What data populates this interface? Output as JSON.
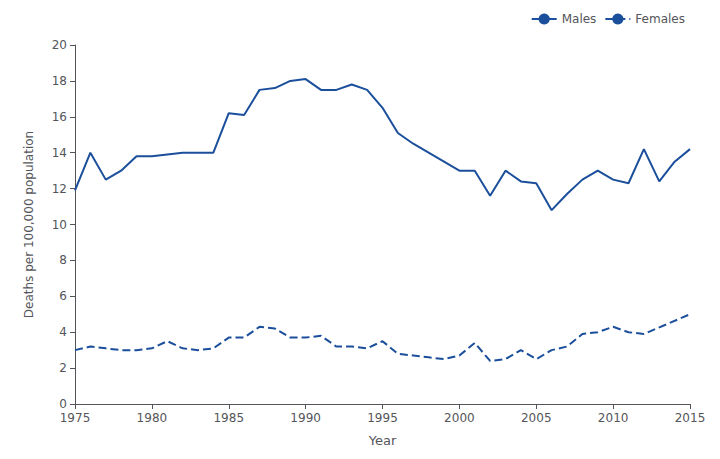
{
  "chart_data": {
    "type": "line",
    "xlabel": "Year",
    "ylabel": "Deaths per 100,000 population",
    "series": [
      {
        "name": "Males",
        "color": "#1B4F9B",
        "line_style": "solid",
        "x": [
          1975,
          1976,
          1977,
          1978,
          1979,
          1980,
          1981,
          1982,
          1983,
          1984,
          1985,
          1986,
          1987,
          1988,
          1989,
          1990,
          1991,
          1992,
          1993,
          1994,
          1995,
          1996,
          1997,
          1998,
          1999,
          2000,
          2001,
          2002,
          2003,
          2004,
          2005,
          2006,
          2007,
          2008,
          2009,
          2010,
          2011,
          2012,
          2013,
          2014,
          2015
        ],
        "values": [
          11.9,
          14.0,
          12.5,
          13.0,
          13.8,
          13.8,
          13.9,
          14.0,
          14.0,
          14.0,
          16.2,
          16.1,
          17.5,
          17.6,
          18.0,
          18.1,
          17.5,
          17.5,
          17.8,
          17.5,
          16.5,
          15.1,
          14.5,
          14.0,
          13.5,
          13.0,
          13.0,
          11.6,
          13.0,
          12.4,
          12.3,
          10.8,
          11.7,
          12.5,
          13.0,
          12.5,
          12.3,
          14.2,
          12.4,
          13.5,
          14.2
        ]
      },
      {
        "name": "Females",
        "color": "#1B4F9B",
        "line_style": "dashed",
        "x": [
          1975,
          1976,
          1977,
          1978,
          1979,
          1980,
          1981,
          1982,
          1983,
          1984,
          1985,
          1986,
          1987,
          1988,
          1989,
          1990,
          1991,
          1992,
          1993,
          1994,
          1995,
          1996,
          1997,
          1998,
          1999,
          2000,
          2001,
          2002,
          2003,
          2004,
          2005,
          2006,
          2007,
          2008,
          2009,
          2010,
          2011,
          2012,
          2015
        ],
        "values": [
          3.0,
          3.2,
          3.1,
          3.0,
          3.0,
          3.1,
          3.5,
          3.1,
          3.0,
          3.1,
          3.7,
          3.7,
          4.3,
          4.2,
          3.7,
          3.7,
          3.8,
          3.2,
          3.2,
          3.1,
          3.5,
          2.8,
          2.7,
          2.6,
          2.5,
          2.7,
          3.4,
          2.4,
          2.5,
          3.0,
          2.5,
          3.0,
          3.2,
          3.9,
          4.0,
          4.3,
          4.0,
          3.9,
          5.0
        ]
      }
    ],
    "xlim": [
      1975,
      2015
    ],
    "xticks": [
      1975,
      1980,
      1985,
      1990,
      1995,
      2000,
      2005,
      2010,
      2015
    ],
    "ylim": [
      0,
      20
    ],
    "yticks": [
      0,
      2,
      4,
      6,
      8,
      10,
      12,
      14,
      16,
      18,
      20
    ],
    "legend": "upper right",
    "grid": false
  }
}
